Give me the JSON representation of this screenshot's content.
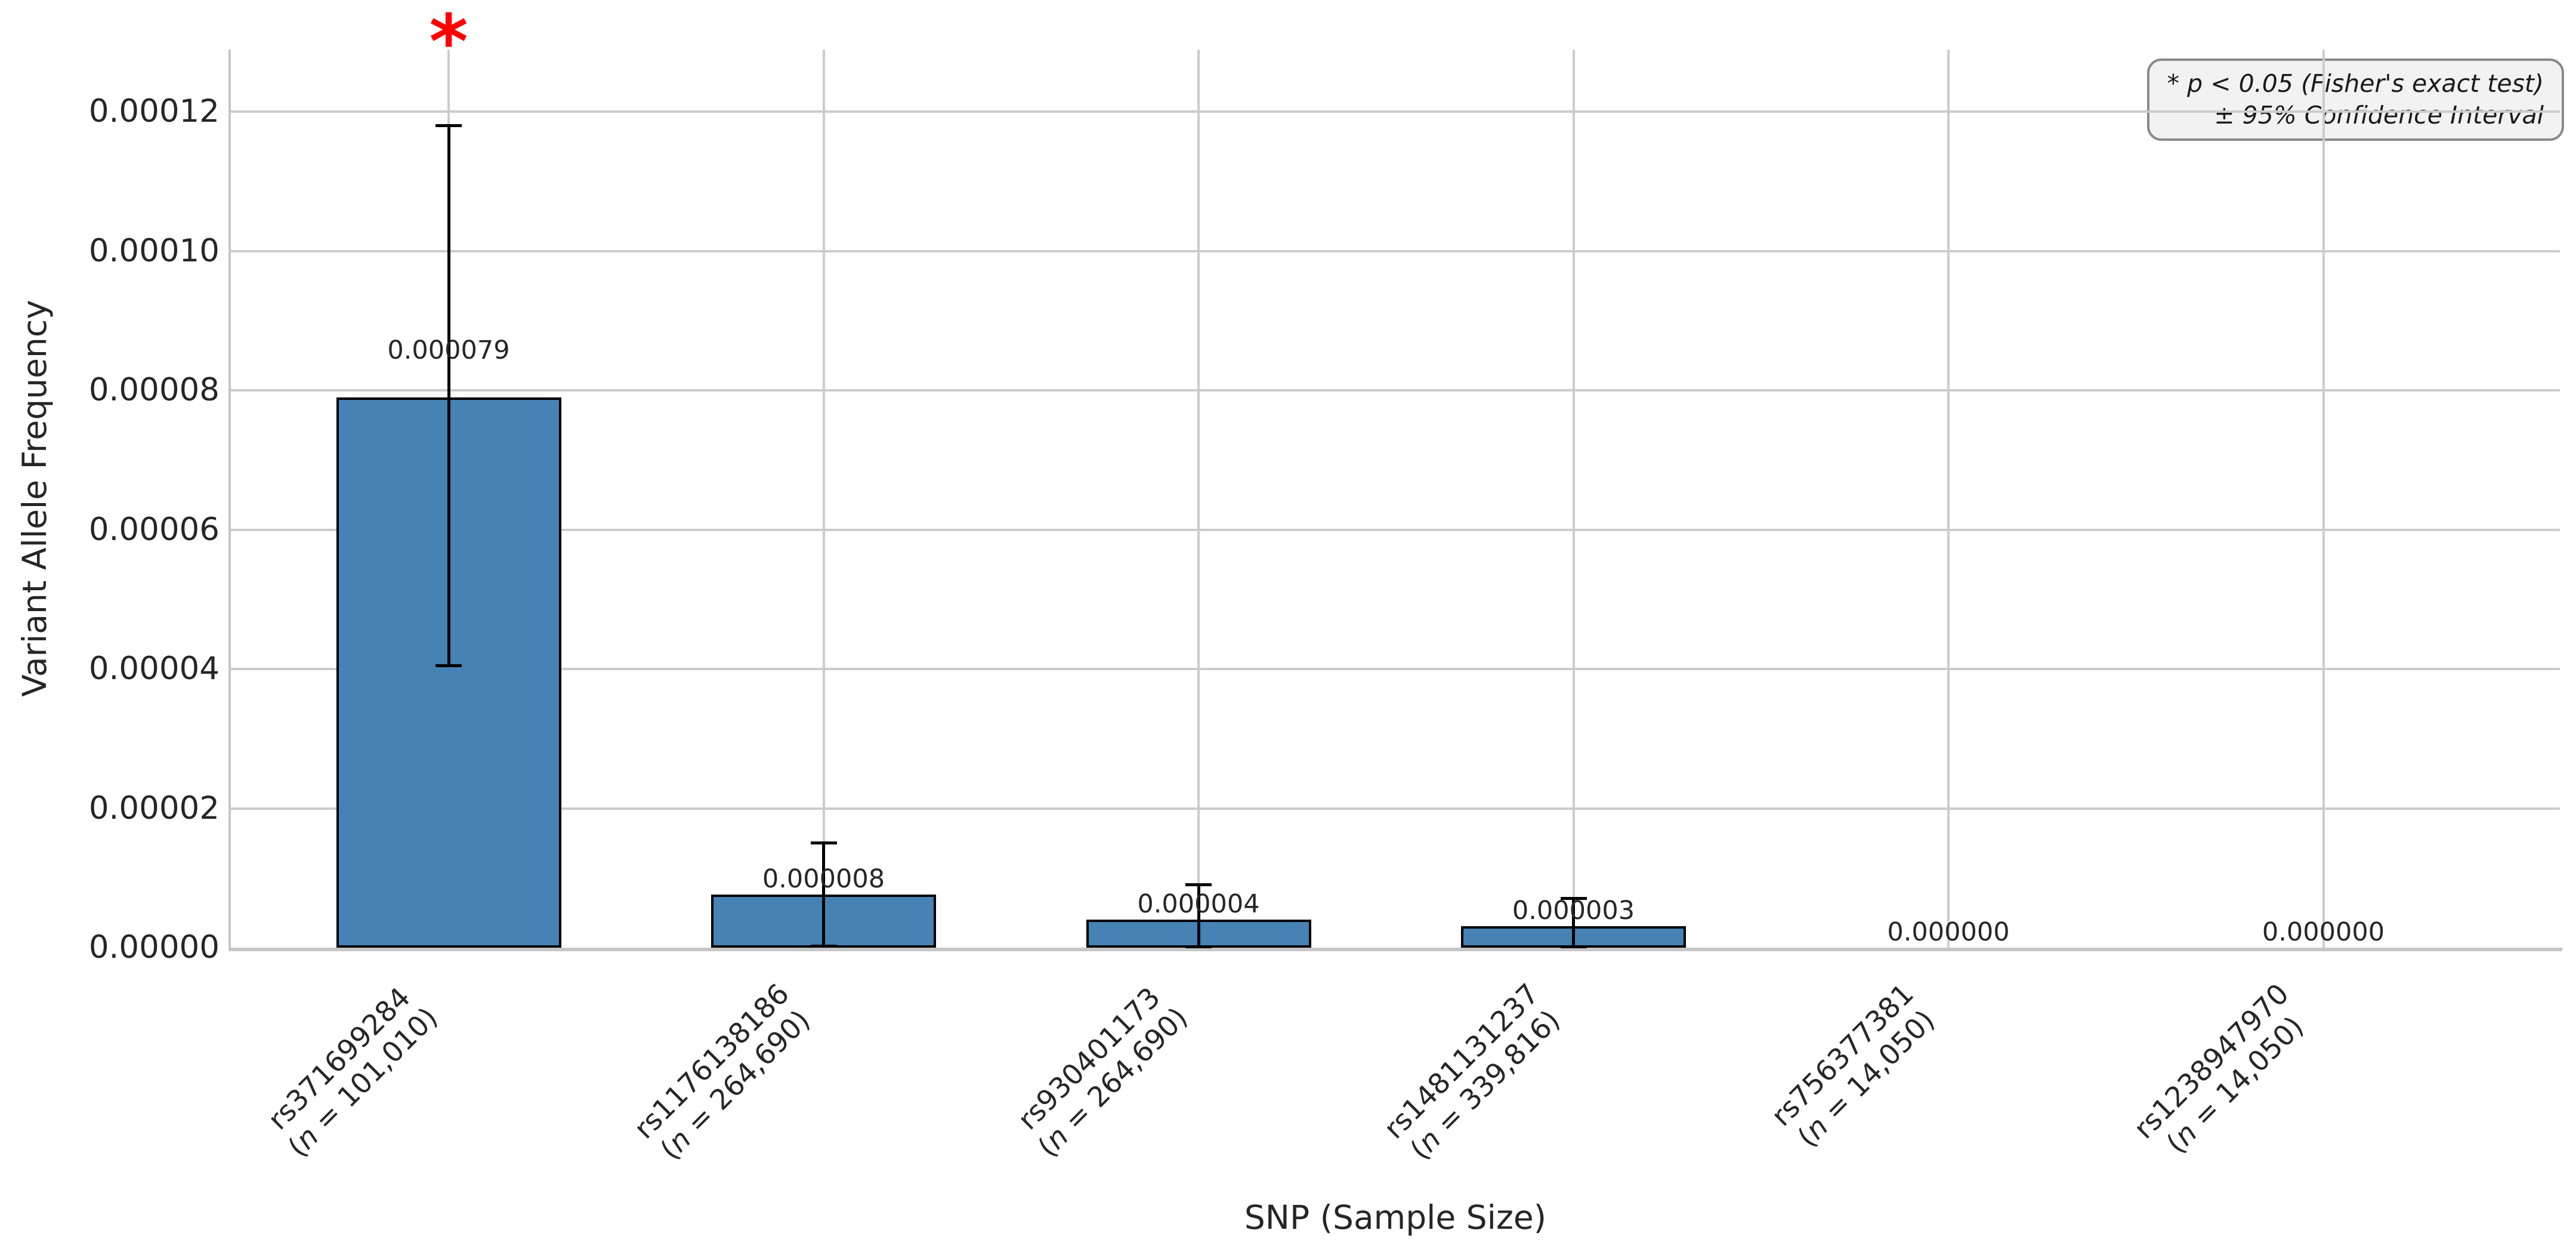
{
  "chart_data": {
    "type": "bar",
    "title": "",
    "xlabel": "SNP (Sample Size)",
    "ylabel": "Variant Allele Frequency",
    "ylim": [
      0,
      0.00013
    ],
    "grid": true,
    "legend_position": "upper right",
    "legend_lines": [
      "* p < 0.05 (Fisher's exact test)",
      "± 95% Confidence Interval"
    ],
    "significance_marker": "*",
    "colors": {
      "bar_fill": "#4682b4",
      "bar_edge": "#000000",
      "error_bar": "#000000",
      "grid": "#cccccc",
      "significance": "#ff0000",
      "text": "#262626"
    },
    "ytick_values": [
      0,
      2e-05,
      4e-05,
      6e-05,
      8e-05,
      0.0001,
      0.00012
    ],
    "ytick_labels": [
      "0.00000",
      "0.00002",
      "0.00004",
      "0.00006",
      "0.00008",
      "0.00010",
      "0.00012"
    ],
    "bars": [
      {
        "snp": "rs371699284",
        "n": "101,010",
        "value": 7.9e-05,
        "label": "0.000079",
        "ci_low": 4.05e-05,
        "ci_high": 0.000118,
        "significant": true
      },
      {
        "snp": "rs1176138186",
        "n": "264,690",
        "value": 7.6e-06,
        "label": "0.000008",
        "ci_low": 2e-07,
        "ci_high": 1.5e-05,
        "significant": false
      },
      {
        "snp": "rs930401173",
        "n": "264,690",
        "value": 4e-06,
        "label": "0.000004",
        "ci_low": 1e-07,
        "ci_high": 9e-06,
        "significant": false
      },
      {
        "snp": "rs1481131237",
        "n": "339,816",
        "value": 3.1e-06,
        "label": "0.000003",
        "ci_low": 1e-07,
        "ci_high": 7.1e-06,
        "significant": false
      },
      {
        "snp": "rs756377381",
        "n": "14,050",
        "value": 0,
        "label": "0.000000",
        "ci_low": null,
        "ci_high": null,
        "significant": false
      },
      {
        "snp": "rs1238947970",
        "n": "14,050",
        "value": 0,
        "label": "0.000000",
        "ci_low": null,
        "ci_high": null,
        "significant": false
      }
    ]
  }
}
